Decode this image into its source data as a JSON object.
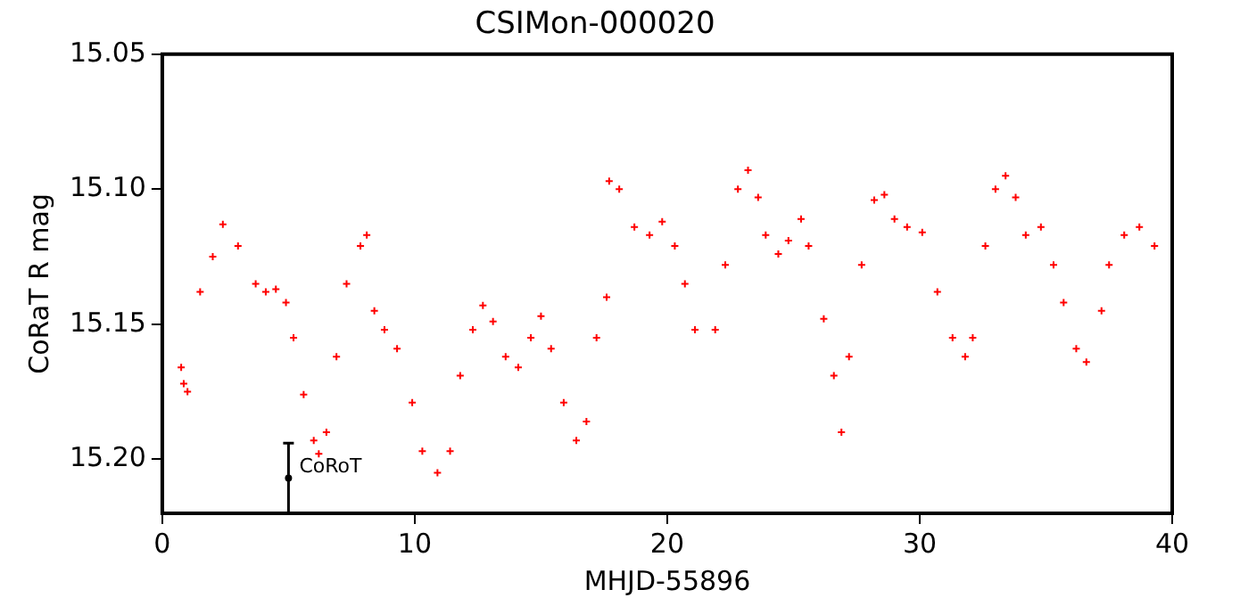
{
  "chart_data": {
    "type": "scatter",
    "title": "CSIMon-000020",
    "xlabel": "MHJD-55896",
    "ylabel": "CoRaT R mag",
    "xlim": [
      0,
      40
    ],
    "xticks": [
      0,
      10,
      20,
      30,
      40
    ],
    "ylim": [
      15.22,
      15.05
    ],
    "yticks": [
      15.05,
      {
        "value": 15.1,
        "label": "15.10"
      },
      15.15,
      {
        "value": 15.2,
        "label": "15.20"
      }
    ],
    "grid": false,
    "legend": false,
    "marker": "cross",
    "series": [
      {
        "color": "#ff0000",
        "x": [
          0.75,
          0.85,
          1.0,
          1.5,
          2.0,
          2.4,
          3.0,
          3.7,
          4.1,
          4.5,
          4.9,
          5.2,
          5.6,
          6.0,
          6.2,
          6.5,
          6.9,
          7.3,
          7.85,
          8.1,
          8.4,
          8.8,
          9.3,
          9.9,
          10.3,
          10.9,
          11.4,
          11.8,
          12.3,
          12.7,
          13.1,
          13.6,
          14.1,
          14.6,
          15.0,
          15.4,
          15.9,
          16.4,
          16.8,
          17.2,
          17.6,
          17.7,
          18.1,
          18.7,
          19.3,
          19.8,
          20.3,
          20.7,
          21.1,
          21.9,
          22.3,
          22.8,
          23.2,
          23.6,
          23.9,
          24.4,
          24.8,
          25.3,
          25.6,
          26.2,
          26.6,
          26.9,
          27.2,
          27.7,
          28.2,
          28.6,
          29.0,
          29.5,
          30.1,
          30.7,
          31.3,
          31.8,
          32.1,
          32.6,
          33.0,
          33.4,
          33.8,
          34.2,
          34.8,
          35.3,
          35.7,
          36.2,
          36.6,
          37.2,
          37.5,
          38.1,
          38.7,
          39.3
        ],
        "values": [
          15.166,
          15.172,
          15.175,
          15.138,
          15.125,
          15.113,
          15.121,
          15.135,
          15.138,
          15.137,
          15.142,
          15.155,
          15.176,
          15.193,
          15.198,
          15.19,
          15.162,
          15.135,
          15.121,
          15.117,
          15.145,
          15.152,
          15.159,
          15.179,
          15.197,
          15.205,
          15.197,
          15.169,
          15.152,
          15.143,
          15.149,
          15.162,
          15.166,
          15.155,
          15.147,
          15.159,
          15.179,
          15.193,
          15.186,
          15.155,
          15.14,
          15.097,
          15.1,
          15.114,
          15.117,
          15.112,
          15.121,
          15.135,
          15.152,
          15.152,
          15.128,
          15.1,
          15.093,
          15.103,
          15.117,
          15.124,
          15.119,
          15.111,
          15.121,
          15.148,
          15.169,
          15.19,
          15.162,
          15.128,
          15.104,
          15.102,
          15.111,
          15.114,
          15.116,
          15.138,
          15.155,
          15.162,
          15.155,
          15.121,
          15.1,
          15.095,
          15.103,
          15.117,
          15.114,
          15.128,
          15.142,
          15.159,
          15.164,
          15.145,
          15.128,
          15.117,
          15.114,
          15.121
        ]
      },
      {
        "name": "CoRoT",
        "color": "#000000",
        "marker": "circle",
        "x": [
          5
        ],
        "values": [
          15.207
        ],
        "errors": [
          0.013
        ]
      }
    ]
  }
}
